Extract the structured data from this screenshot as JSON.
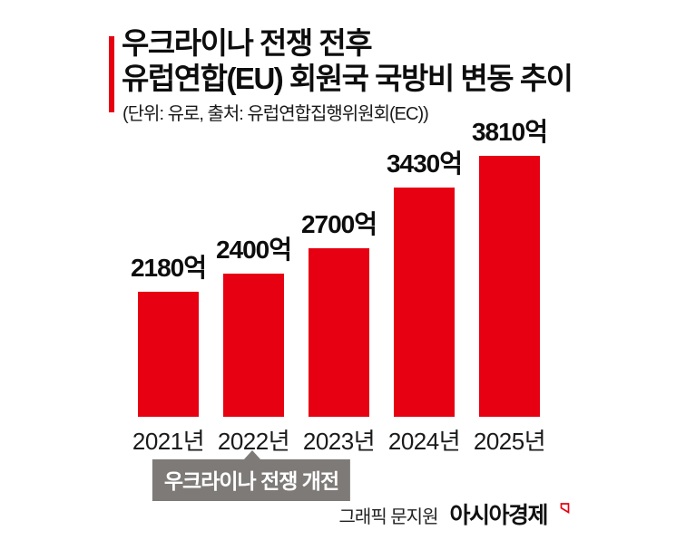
{
  "page": {
    "background": "#ffffff"
  },
  "header": {
    "accent_color": "#e60012",
    "title_line1": "우크라이나 전쟁 전후",
    "title_line2": "유럽연합(EU) 회원국 국방비 변동 추이",
    "subtitle": "(단위: 유로, 출처: 유럽연합집행위원회(EC))"
  },
  "chart_data": {
    "type": "bar",
    "title": "우크라이나 전쟁 전후 유럽연합(EU) 회원국 국방비 변동 추이",
    "unit_note": "단위: 유로",
    "source": "유럽연합집행위원회(EC)",
    "categories": [
      "2021년",
      "2022년",
      "2023년",
      "2024년",
      "2025년"
    ],
    "values": [
      2180,
      2400,
      2700,
      3430,
      3810
    ],
    "value_labels": [
      "2180억",
      "2400억",
      "2700억",
      "3430억",
      "3810억"
    ],
    "bar_color": "#e60012",
    "grid": false,
    "legend": false,
    "axis_lines": false,
    "annotation": {
      "text": "우크라이나 전쟁 개전",
      "target_category": "2022년",
      "background": "#7e7a78",
      "text_color": "#ffffff"
    }
  },
  "footer": {
    "credit": "그래픽 문지원",
    "brand": "아시아경제",
    "brand_mark_color": "#e60012"
  }
}
